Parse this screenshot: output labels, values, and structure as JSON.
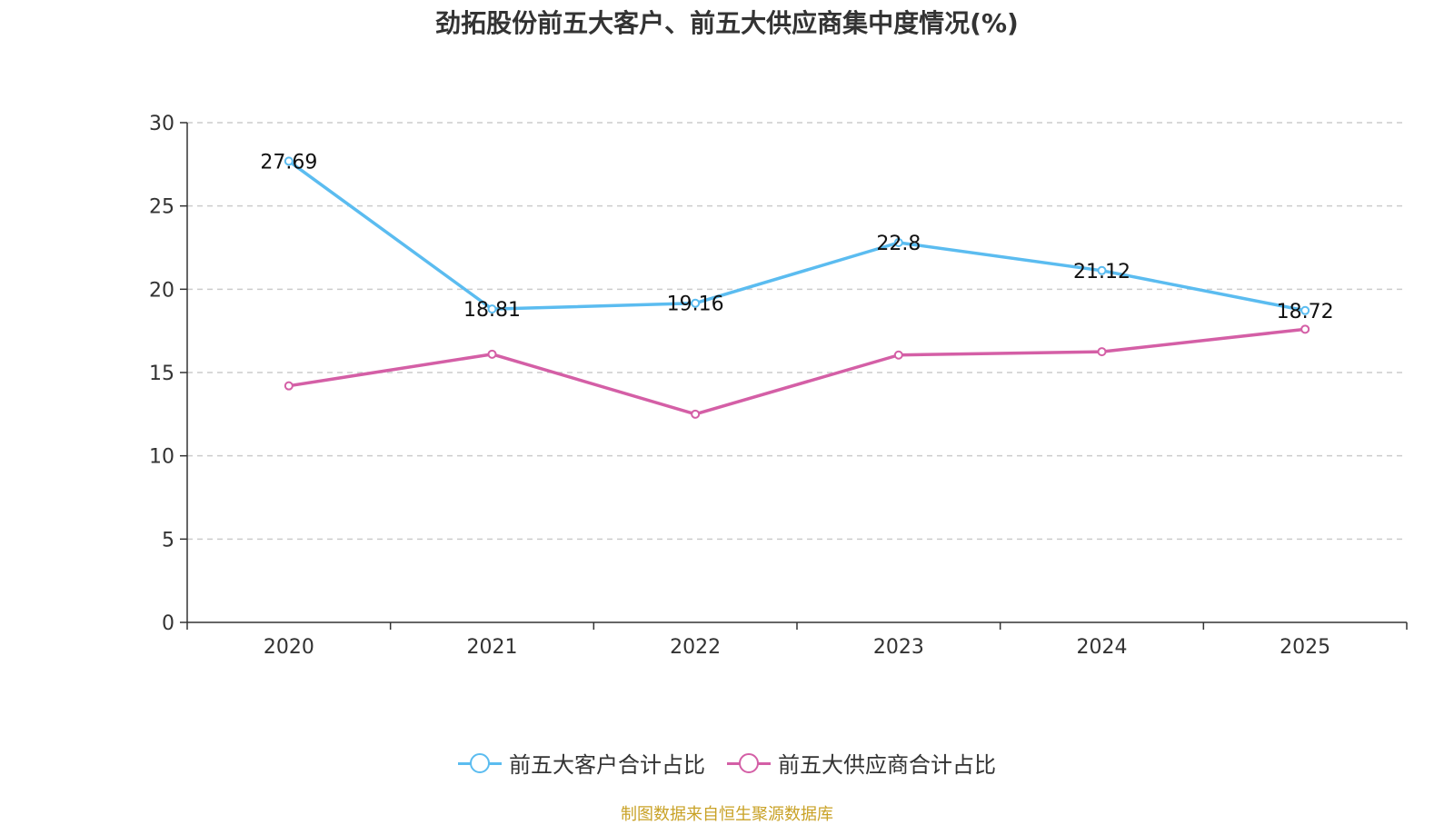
{
  "chart_data": {
    "type": "line",
    "title": "劲拓股份前五大客户、前五大供应商集中度情况(%)",
    "categories": [
      "2020",
      "2021",
      "2022",
      "2023",
      "2024",
      "2025"
    ],
    "ylim": [
      0,
      30
    ],
    "yticks": [
      0,
      5,
      10,
      15,
      20,
      25,
      30
    ],
    "grid": true,
    "legend_position": "bottom",
    "series": [
      {
        "name": "前五大客户合计占比",
        "color": "#5bbcf0",
        "values": [
          27.69,
          18.81,
          19.16,
          22.8,
          21.12,
          18.72
        ],
        "labels": [
          "27.69",
          "18.81",
          "19.16",
          "22.8",
          "21.12",
          "18.72"
        ],
        "show_labels": true
      },
      {
        "name": "前五大供应商合计占比",
        "color": "#d45fa6",
        "values": [
          14.2,
          16.1,
          12.5,
          16.05,
          16.25,
          17.6
        ],
        "show_labels": false
      }
    ]
  },
  "source_note": "制图数据来自恒生聚源数据库"
}
